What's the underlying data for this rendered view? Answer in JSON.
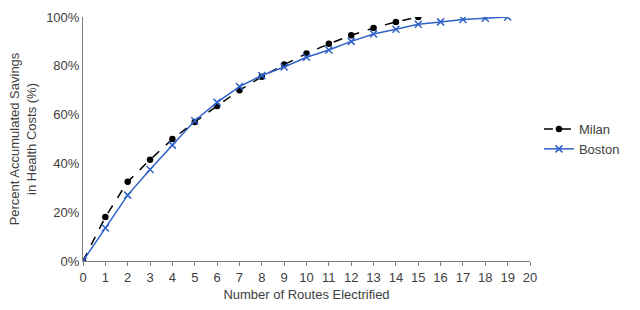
{
  "chart_data": {
    "type": "line",
    "x_label": "Number of Routes Electrified",
    "y_label": "Percent Accumulated Savings\nin Health Costs (%)",
    "series": [
      {
        "name": "Milan",
        "color": "#000000",
        "marker": "circle",
        "line_style": "dash",
        "x": [
          0,
          1,
          2,
          3,
          4,
          5,
          6,
          7,
          8,
          9,
          10,
          11,
          12,
          13,
          14,
          15
        ],
        "values": [
          0,
          18,
          32.5,
          41.5,
          50,
          57,
          63.5,
          70,
          75.5,
          80.5,
          85,
          89,
          92.5,
          95.5,
          98,
          100
        ]
      },
      {
        "name": "Boston",
        "color": "#2f62c8",
        "marker": "x",
        "line_style": "solid",
        "x": [
          0,
          1,
          2,
          3,
          4,
          5,
          6,
          7,
          8,
          9,
          10,
          11,
          12,
          13,
          14,
          15,
          16,
          17,
          18,
          19
        ],
        "values": [
          0,
          13.5,
          27,
          37.5,
          47.5,
          57.5,
          65,
          71.5,
          76,
          79.5,
          83.5,
          86.5,
          90,
          93,
          95,
          97,
          98,
          99,
          99.5,
          100
        ]
      }
    ],
    "xlim": [
      0,
      20
    ],
    "xticks": [
      0,
      1,
      2,
      3,
      4,
      5,
      6,
      7,
      8,
      9,
      10,
      11,
      12,
      13,
      14,
      15,
      16,
      17,
      18,
      19,
      20
    ],
    "ylim": [
      0,
      100
    ],
    "yticks": [
      {
        "value": 0,
        "label": "0%"
      },
      {
        "value": 20,
        "label": "20%"
      },
      {
        "value": 40,
        "label": "40%"
      },
      {
        "value": 60,
        "label": "60%"
      },
      {
        "value": 80,
        "label": "80%"
      },
      {
        "value": 100,
        "label": "100%"
      }
    ],
    "grid": false,
    "legend": "right"
  }
}
